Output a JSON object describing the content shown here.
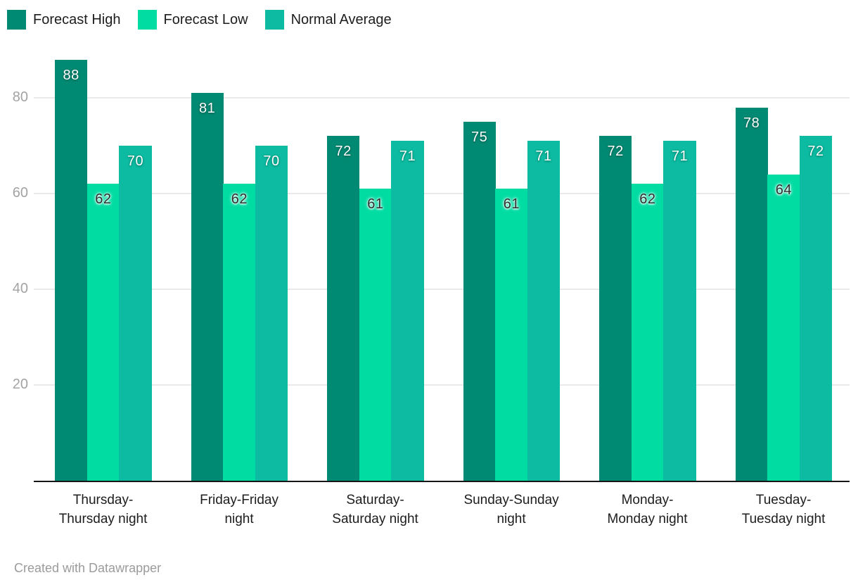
{
  "chart_data": {
    "type": "bar",
    "title": "",
    "xlabel": "",
    "ylabel": "",
    "categories": [
      "Thursday-\nThursday night",
      "Friday-Friday\nnight",
      "Saturday-\nSaturday night",
      "Sunday-Sunday\nnight",
      "Monday-\nMonday night",
      "Tuesday-\nTuesday night"
    ],
    "series": [
      {
        "name": "Forecast High",
        "color": "#008a73",
        "label_style": "light",
        "values": [
          88,
          81,
          72,
          75,
          72,
          78
        ]
      },
      {
        "name": "Forecast Low",
        "color": "#00dca2",
        "label_style": "dark",
        "values": [
          62,
          62,
          61,
          61,
          62,
          64
        ]
      },
      {
        "name": "Normal Average",
        "color": "#0cbba1",
        "label_style": "light",
        "values": [
          70,
          70,
          71,
          71,
          71,
          72
        ]
      }
    ],
    "yticks": [
      20,
      40,
      60,
      80
    ],
    "ylim": [
      0,
      88
    ],
    "grid": true,
    "legend_position": "top-left",
    "colors": {
      "axis": "#161616",
      "gridline": "#eaeaea",
      "tick_text": "#a3a3a3",
      "category_text": "#1d1d1d"
    }
  },
  "footer": {
    "credit": "Created with Datawrapper"
  }
}
